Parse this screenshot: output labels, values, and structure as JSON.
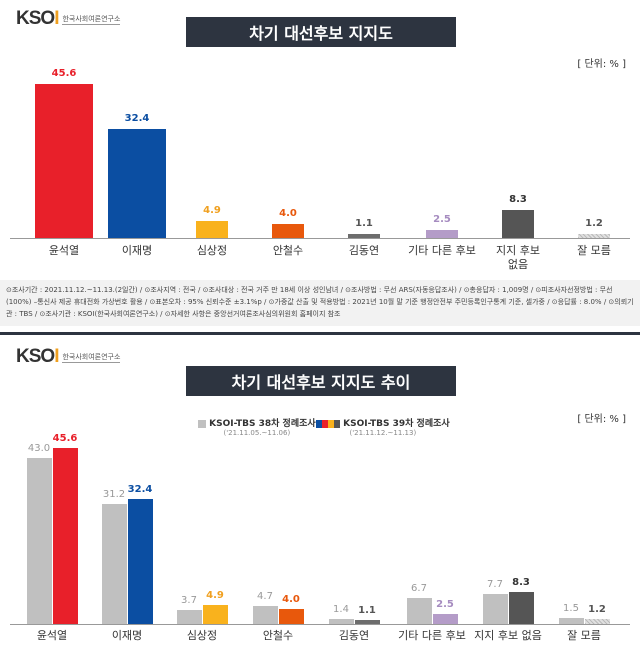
{
  "logo": {
    "brand": "KSOI",
    "org": "한국사회여론연구소"
  },
  "chart_data": [
    {
      "type": "bar",
      "title": "차기 대선후보 지지도",
      "unit": "[ 단위: % ]",
      "categories": [
        "윤석열",
        "이재명",
        "심상정",
        "안철수",
        "김동연",
        "기타 다른 후보",
        "지지 후보 없음",
        "잘 모름"
      ],
      "values": [
        45.6,
        32.4,
        4.9,
        4.0,
        1.1,
        2.5,
        8.3,
        1.2
      ],
      "colors": [
        "#e8202a",
        "#0b4ea2",
        "#f9b21d",
        "#e8580c",
        "#6d6d6d",
        "#b49cc8",
        "#555555",
        "#cccccc"
      ],
      "label_colors": [
        "#e8202a",
        "#0b4ea2",
        "#f0a020",
        "#e8580c",
        "#555555",
        "#a68cc0",
        "#333333",
        "#555555"
      ]
    },
    {
      "type": "bar",
      "title": "차기 대선후보 지지도 추이",
      "unit": "[ 단위: % ]",
      "categories": [
        "윤석열",
        "이재명",
        "심상정",
        "안철수",
        "김동연",
        "기타 다른 후보",
        "지지 후보 없음",
        "잘 모름"
      ],
      "series": [
        {
          "name": "KSOI-TBS 38차 정례조사",
          "period": "('21.11.05.~11.06)",
          "values": [
            43.0,
            31.2,
            3.7,
            4.7,
            1.4,
            6.7,
            7.7,
            1.5
          ],
          "color": "#c0c0c0"
        },
        {
          "name": "KSOI-TBS 39차 정례조사",
          "period": "('21.11.12.~11.13)",
          "values": [
            45.6,
            32.4,
            4.9,
            4.0,
            1.1,
            2.5,
            8.3,
            1.2
          ]
        }
      ],
      "legend": "top"
    }
  ],
  "note": "⊙조사기간 : 2021.11.12.~11.13.(2일간) / ⊙조사지역 : 전국 / ⊙조사대상 : 전국 거주 만 18세 이상 성인남녀 / ⊙조사방법 : 무선 ARS(자동응답조사) / ⊙총응답자 : 1,009명 / ⊙피조사자선정방법 : 무선(100%) –통신사 제공 휴대전화 가상번호 활용 / ⊙표본오차 : 95% 신뢰수준 ±3.1%p / ⊙가중값 산출 및 적용방법 : 2021년 10월 말 기준 행정안전부 주민등록인구통계 기준, 셀가중 / ⊙응답률 : 8.0% / ⊙의뢰기관 : TBS / ⊙조사기관 : KSOI(한국사회여론연구소) / ⊙자세한 사항은 중앙선거여론조사심의위원회 홈페이지 참조"
}
